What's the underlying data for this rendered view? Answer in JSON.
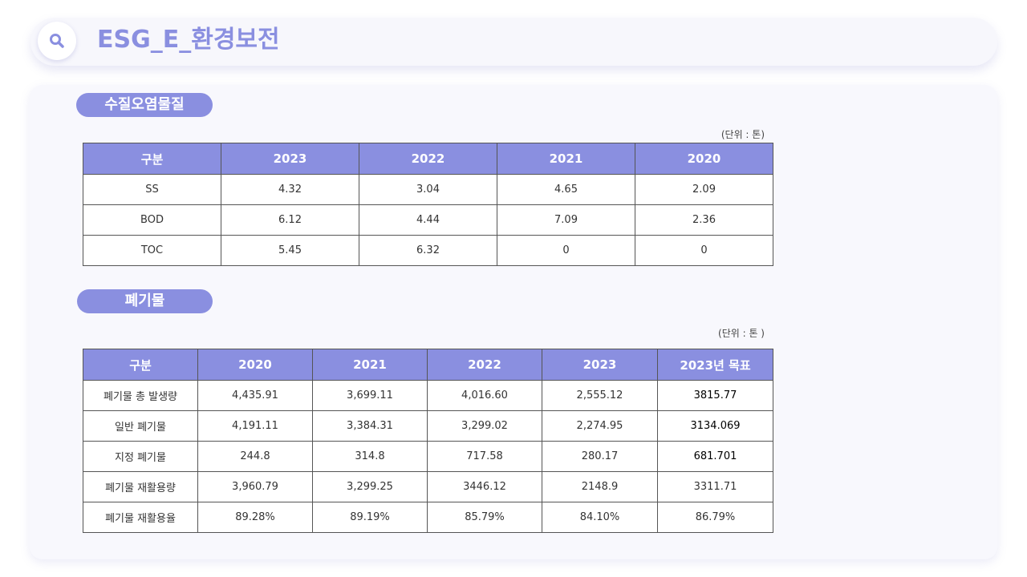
{
  "header": {
    "title": "ESG_E_환경보전",
    "icon": "search-icon"
  },
  "colors": {
    "accent": "#8a8fe0",
    "panel": "#f8f8fd"
  },
  "water": {
    "section_label": "수질오염물질",
    "unit": "(단위 : 톤)",
    "columns": [
      "구분",
      "2023",
      "2022",
      "2021",
      "2020"
    ],
    "rows": [
      [
        "SS",
        "4.32",
        "3.04",
        "4.65",
        "2.09"
      ],
      [
        "BOD",
        "6.12",
        "4.44",
        "7.09",
        "2.36"
      ],
      [
        "TOC",
        "5.45",
        "6.32",
        "0",
        "0"
      ]
    ]
  },
  "waste": {
    "section_label": "폐기물",
    "unit": "(단위 : 톤 )",
    "columns": [
      "구분",
      "2020",
      "2021",
      "2022",
      "2023",
      "2023년 목표"
    ],
    "rows": [
      [
        "폐기물 총 발생량",
        "4,435.91",
        "3,699.11",
        "4,016.60",
        "2,555.12",
        "3815.77"
      ],
      [
        "일반 폐기물",
        "4,191.11",
        "3,384.31",
        "3,299.02",
        "2,274.95",
        "3134.069"
      ],
      [
        "지정 폐기물",
        "244.8",
        "314.8",
        "717.58",
        "280.17",
        "681.701"
      ],
      [
        "폐기물 재활용량",
        "3,960.79",
        "3,299.25",
        "3446.12",
        "2148.9",
        "3311.71"
      ],
      [
        "폐기물 재활용율",
        "89.28%",
        "89.19%",
        "85.79%",
        "84.10%",
        "86.79%"
      ]
    ]
  }
}
